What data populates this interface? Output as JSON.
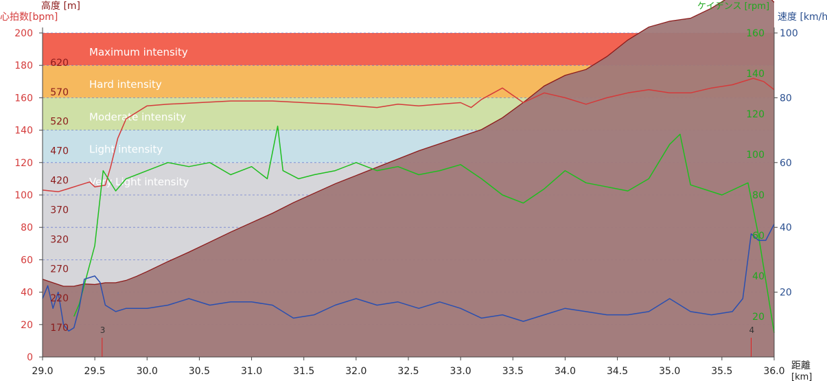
{
  "chart_data": {
    "type": "line",
    "title": "",
    "colors": {
      "heart_rate": "#d43a3a",
      "altitude_fill": "#a07878",
      "altitude_line": "#8b1a1a",
      "cadence": "#1fbe1f",
      "speed": "#2a4fb0",
      "axis_left": "#d43a3a",
      "axis_cadence": "#1fa81f",
      "axis_speed": "#2a4f8f"
    },
    "axes": {
      "x_label_top": "距離",
      "x_label_bottom": "[km]",
      "x_range": [
        29.0,
        36.0
      ],
      "x_ticks": [
        "29.0",
        "29.5",
        "30.0",
        "30.5",
        "31.0",
        "31.5",
        "32.0",
        "32.5",
        "33.0",
        "33.5",
        "34.0",
        "34.5",
        "35.0",
        "35.5",
        "36.0"
      ],
      "hr_label": "心拍数[bpm]",
      "hr_range": [
        0,
        200
      ],
      "hr_ticks": [
        "0",
        "20",
        "40",
        "60",
        "80",
        "100",
        "120",
        "140",
        "160",
        "180",
        "200"
      ],
      "alt_label": "高度 [m]",
      "alt_range": [
        120,
        670
      ],
      "alt_ticks": [
        "170",
        "220",
        "270",
        "320",
        "370",
        "420",
        "470",
        "520",
        "570",
        "620"
      ],
      "cad_label": "ケイデンス [rpm]",
      "cad_range": [
        0,
        160
      ],
      "cad_ticks": [
        "20",
        "40",
        "60",
        "80",
        "100",
        "120",
        "140",
        "160"
      ],
      "speed_label": "速度 [km/h]",
      "speed_range": [
        0,
        100
      ],
      "speed_ticks": [
        "20",
        "40",
        "60",
        "80",
        "100"
      ]
    },
    "zones": [
      {
        "name": "Maximum intensity",
        "from": 180,
        "to": 200,
        "color": "#f26352"
      },
      {
        "name": "Hard intensity",
        "from": 160,
        "to": 180,
        "color": "#f6b95e"
      },
      {
        "name": "Moderate intensity",
        "from": 140,
        "to": 160,
        "color": "#cfe0a6"
      },
      {
        "name": "Light intensity",
        "from": 120,
        "to": 140,
        "color": "#c7e0e8"
      },
      {
        "name": "Very Light intensity",
        "from": 0,
        "to": 120,
        "color": "#d6d6da"
      }
    ],
    "laps": [
      {
        "label": "3",
        "x": 29.57
      },
      {
        "label": "4",
        "x": 35.78
      }
    ],
    "series": [
      {
        "name": "Altitude",
        "unit": "m",
        "x": [
          29.0,
          29.1,
          29.2,
          29.3,
          29.4,
          29.5,
          29.6,
          29.7,
          29.8,
          29.9,
          30.0,
          30.2,
          30.4,
          30.6,
          30.8,
          31.0,
          31.2,
          31.4,
          31.6,
          31.8,
          32.0,
          32.2,
          32.4,
          32.6,
          32.8,
          33.0,
          33.2,
          33.4,
          33.6,
          33.8,
          34.0,
          34.2,
          34.4,
          34.6,
          34.8,
          35.0,
          35.2,
          35.4,
          35.6,
          35.7,
          35.8,
          35.9,
          36.0
        ],
        "values": [
          252,
          246,
          240,
          240,
          244,
          243,
          246,
          246,
          250,
          257,
          265,
          282,
          298,
          315,
          332,
          348,
          364,
          382,
          398,
          414,
          428,
          442,
          456,
          470,
          482,
          494,
          506,
          526,
          552,
          580,
          598,
          608,
          630,
          658,
          680,
          690,
          695,
          712,
          734,
          744,
          748,
          740,
          722
        ]
      },
      {
        "name": "Heart rate",
        "unit": "bpm",
        "x": [
          29.0,
          29.15,
          29.25,
          29.35,
          29.45,
          29.5,
          29.6,
          29.65,
          29.72,
          29.8,
          30.0,
          30.2,
          30.5,
          30.8,
          31.0,
          31.2,
          31.5,
          31.8,
          32.0,
          32.2,
          32.4,
          32.6,
          32.8,
          33.0,
          33.1,
          33.2,
          33.4,
          33.6,
          33.8,
          34.0,
          34.2,
          34.4,
          34.6,
          34.8,
          35.0,
          35.2,
          35.4,
          35.6,
          35.8,
          35.9,
          36.0
        ],
        "values": [
          103,
          102,
          104,
          106,
          108,
          105,
          106,
          117,
          135,
          147,
          155,
          156,
          157,
          158,
          158,
          158,
          157,
          156,
          155,
          154,
          156,
          155,
          156,
          157,
          154,
          159,
          166,
          157,
          163,
          160,
          156,
          160,
          163,
          165,
          163,
          163,
          166,
          168,
          172,
          170,
          165
        ]
      },
      {
        "name": "Cadence",
        "unit": "rpm",
        "x": [
          29.0,
          29.3,
          29.3,
          29.35,
          29.5,
          29.58,
          29.7,
          29.8,
          30.0,
          30.2,
          30.4,
          30.6,
          30.8,
          31.0,
          31.15,
          31.25,
          31.3,
          31.45,
          31.6,
          31.8,
          32.0,
          32.2,
          32.4,
          32.6,
          32.8,
          33.0,
          33.2,
          33.4,
          33.6,
          33.8,
          34.0,
          34.2,
          34.4,
          34.6,
          34.8,
          35.0,
          35.1,
          35.2,
          35.5,
          35.75,
          35.85,
          36.0
        ],
        "values": [
          null,
          null,
          20,
          26,
          55,
          92,
          82,
          88,
          92,
          96,
          94,
          96,
          90,
          94,
          88,
          114,
          92,
          88,
          90,
          92,
          96,
          92,
          94,
          90,
          92,
          95,
          88,
          80,
          76,
          83,
          92,
          86,
          84,
          82,
          88,
          105,
          110,
          85,
          80,
          86,
          60,
          12
        ]
      },
      {
        "name": "Speed",
        "unit": "km/h",
        "x": [
          29.0,
          29.05,
          29.1,
          29.15,
          29.2,
          29.25,
          29.3,
          29.35,
          29.4,
          29.5,
          29.55,
          29.6,
          29.7,
          29.8,
          30.0,
          30.2,
          30.4,
          30.6,
          30.8,
          31.0,
          31.2,
          31.4,
          31.6,
          31.8,
          32.0,
          32.2,
          32.4,
          32.6,
          32.8,
          33.0,
          33.2,
          33.4,
          33.6,
          33.8,
          34.0,
          34.2,
          34.4,
          34.6,
          34.8,
          35.0,
          35.2,
          35.4,
          35.6,
          35.7,
          35.78,
          35.85,
          35.92,
          36.0
        ],
        "values": [
          18,
          22,
          15,
          20,
          10,
          8,
          9,
          15,
          24,
          25,
          23,
          16,
          14,
          15,
          15,
          16,
          18,
          16,
          17,
          17,
          16,
          12,
          13,
          16,
          18,
          16,
          17,
          15,
          17,
          15,
          12,
          13,
          11,
          13,
          15,
          14,
          13,
          13,
          14,
          18,
          14,
          13,
          14,
          18,
          38,
          36,
          36,
          41
        ]
      }
    ]
  }
}
